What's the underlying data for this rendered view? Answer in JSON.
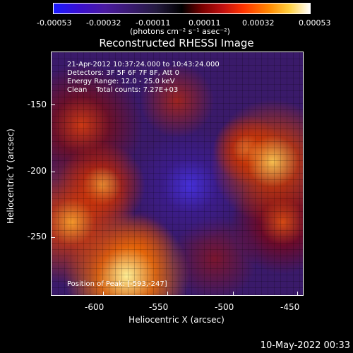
{
  "colorbar": {
    "ticks": [
      "-0.00053",
      "-0.00032",
      "-0.00011",
      "0.00011",
      "0.00032",
      "0.00053"
    ],
    "unit_label": "(photons cm⁻² s⁻¹ asec⁻²)"
  },
  "plot": {
    "title": "Reconstructed RHESSI Image",
    "info_lines": [
      "21-Apr-2012 10:37:24.000 to 10:43:24.000",
      "Detectors: 3F 5F 6F 7F 8F, Att 0",
      "Energy Range: 12.0 - 25.0 keV",
      "Clean    Total counts: 7.27E+03"
    ],
    "peak_label": "Position of Peak: [-593,-247]",
    "xlabel": "Heliocentric X (arcsec)",
    "ylabel": "Heliocentric Y (arcsec)",
    "xticks": [
      "-600",
      "-550",
      "-500",
      "-450"
    ],
    "yticks": [
      "-150",
      "-200",
      "-250"
    ]
  },
  "footer": {
    "timestamp": "10-May-2022 00:33"
  }
}
